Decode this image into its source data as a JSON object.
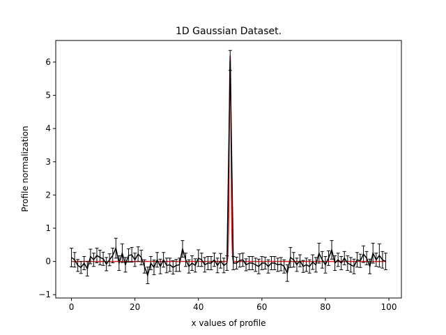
{
  "chart_data": {
    "type": "line",
    "title": "1D Gaussian Dataset.",
    "xlabel": "x values of profile",
    "ylabel": "Profile normalization",
    "xlim": [
      -4.95,
      103.95
    ],
    "ylim": [
      -1.1,
      6.65
    ],
    "xticks": [
      0,
      20,
      40,
      60,
      80,
      100
    ],
    "yticks": [
      -1,
      0,
      1,
      2,
      3,
      4,
      5,
      6
    ],
    "grid": false,
    "legend": "none",
    "series": [
      {
        "kind": "errorbar",
        "color": "#000000",
        "x": [
          0,
          1,
          2,
          3,
          4,
          5,
          6,
          7,
          8,
          9,
          10,
          11,
          12,
          13,
          14,
          15,
          16,
          17,
          18,
          19,
          20,
          21,
          22,
          23,
          24,
          25,
          26,
          27,
          28,
          29,
          30,
          31,
          32,
          33,
          34,
          35,
          36,
          37,
          38,
          39,
          40,
          41,
          42,
          43,
          44,
          45,
          46,
          47,
          48,
          49,
          50,
          51,
          52,
          53,
          54,
          55,
          56,
          57,
          58,
          59,
          60,
          61,
          62,
          63,
          64,
          65,
          66,
          67,
          68,
          69,
          70,
          71,
          72,
          73,
          74,
          75,
          76,
          77,
          78,
          79,
          80,
          81,
          82,
          83,
          84,
          85,
          86,
          87,
          88,
          89,
          90,
          91,
          92,
          93,
          94,
          95,
          96,
          97,
          98,
          99
        ],
        "y": [
          0.12,
          0.05,
          -0.12,
          -0.18,
          -0.05,
          -0.22,
          0.15,
          0.05,
          0.18,
          0.12,
          0.08,
          -0.08,
          0.05,
          0.18,
          0.4,
          -0.05,
          0.25,
          -0.1,
          0.18,
          0.2,
          0.05,
          0.22,
          0.12,
          -0.15,
          -0.42,
          -0.05,
          -0.18,
          0.05,
          -0.15,
          0.05,
          -0.12,
          -0.1,
          -0.18,
          -0.12,
          -0.1,
          0.38,
          0.05,
          -0.15,
          -0.05,
          -0.12,
          0.1,
          0.05,
          -0.1,
          -0.05,
          -0.05,
          0.05,
          -0.12,
          0.02,
          -0.12,
          -0.05,
          6.05,
          -0.05,
          -0.05,
          0.03,
          0.05,
          -0.1,
          -0.05,
          -0.05,
          -0.1,
          -0.15,
          -0.05,
          -0.05,
          -0.15,
          -0.05,
          -0.05,
          -0.1,
          -0.08,
          -0.15,
          -0.35,
          0.12,
          0.05,
          -0.1,
          0.02,
          -0.15,
          -0.1,
          -0.15,
          -0.02,
          -0.1,
          0.25,
          0.05,
          -0.1,
          0.1,
          0.35,
          -0.05,
          0.05,
          -0.05,
          0.1,
          -0.05,
          -0.1,
          -0.15,
          0.05,
          0.02,
          0.22,
          0.1,
          -0.15,
          0.25,
          0.05,
          0.18,
          0.05,
          0.0
        ],
        "yerr": [
          0.28,
          0.22,
          0.18,
          0.18,
          0.2,
          0.22,
          0.22,
          0.2,
          0.22,
          0.22,
          0.2,
          0.2,
          0.18,
          0.22,
          0.3,
          0.22,
          0.28,
          0.22,
          0.2,
          0.22,
          0.2,
          0.22,
          0.22,
          0.2,
          0.25,
          0.2,
          0.22,
          0.22,
          0.22,
          0.22,
          0.22,
          0.2,
          0.2,
          0.18,
          0.2,
          0.25,
          0.2,
          0.2,
          0.22,
          0.2,
          0.25,
          0.2,
          0.22,
          0.2,
          0.2,
          0.2,
          0.22,
          0.22,
          0.22,
          0.22,
          0.3,
          0.2,
          0.18,
          0.2,
          0.2,
          0.18,
          0.2,
          0.2,
          0.2,
          0.22,
          0.2,
          0.18,
          0.2,
          0.2,
          0.2,
          0.2,
          0.2,
          0.2,
          0.25,
          0.3,
          0.22,
          0.2,
          0.18,
          0.18,
          0.2,
          0.2,
          0.22,
          0.22,
          0.3,
          0.25,
          0.25,
          0.22,
          0.28,
          0.22,
          0.2,
          0.2,
          0.2,
          0.22,
          0.22,
          0.22,
          0.22,
          0.2,
          0.25,
          0.2,
          0.22,
          0.3,
          0.2,
          0.35,
          0.25,
          0.25
        ]
      },
      {
        "kind": "model",
        "color": "#e31a1c",
        "center": 50,
        "amplitude": 6.2,
        "sigma": 0.28
      }
    ]
  }
}
